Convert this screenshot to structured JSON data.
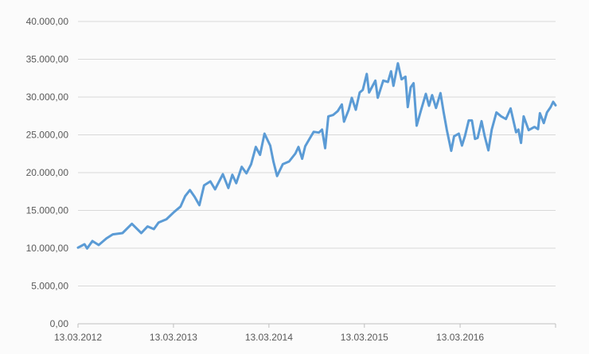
{
  "chart_data": {
    "type": "line",
    "title": "",
    "xlabel": "",
    "ylabel": "",
    "ylim": [
      0,
      40000
    ],
    "xlim": [
      "2012-03-13",
      "2017-03-13"
    ],
    "grid": "horizontal",
    "legend": "none",
    "line_color": "#5b9bd5",
    "y_ticks": [
      {
        "value": 0,
        "label": "0,00"
      },
      {
        "value": 5000,
        "label": "5.000,00"
      },
      {
        "value": 10000,
        "label": "10.000,00"
      },
      {
        "value": 15000,
        "label": "15.000,00"
      },
      {
        "value": 20000,
        "label": "20.000,00"
      },
      {
        "value": 25000,
        "label": "25.000,00"
      },
      {
        "value": 30000,
        "label": "30.000,00"
      },
      {
        "value": 35000,
        "label": "35.000,00"
      },
      {
        "value": 40000,
        "label": "40.000,00"
      }
    ],
    "x_ticks": [
      {
        "value": "2012-03-13",
        "label": "13.03.2012"
      },
      {
        "value": "2013-03-13",
        "label": "13.03.2013"
      },
      {
        "value": "2014-03-13",
        "label": "13.03.2014"
      },
      {
        "value": "2015-03-13",
        "label": "13.03.2015"
      },
      {
        "value": "2016-03-13",
        "label": "13.03.2016"
      },
      {
        "value": "2017-03-13",
        "label": ""
      }
    ],
    "points": [
      [
        "2012-03-13",
        10070
      ],
      [
        "2012-04-07",
        10530
      ],
      [
        "2012-04-17",
        9970
      ],
      [
        "2012-05-07",
        10950
      ],
      [
        "2012-05-31",
        10420
      ],
      [
        "2012-06-30",
        11300
      ],
      [
        "2012-07-24",
        11830
      ],
      [
        "2012-08-30",
        12000
      ],
      [
        "2012-10-05",
        13230
      ],
      [
        "2012-11-10",
        12000
      ],
      [
        "2012-12-04",
        12880
      ],
      [
        "2012-12-28",
        12530
      ],
      [
        "2013-01-15",
        13400
      ],
      [
        "2013-02-14",
        13830
      ],
      [
        "2013-03-16",
        14810
      ],
      [
        "2013-04-09",
        15510
      ],
      [
        "2013-04-27",
        16910
      ],
      [
        "2013-05-15",
        17690
      ],
      [
        "2013-06-02",
        16800
      ],
      [
        "2013-06-20",
        15690
      ],
      [
        "2013-07-08",
        18320
      ],
      [
        "2013-08-01",
        18840
      ],
      [
        "2013-08-19",
        17790
      ],
      [
        "2013-09-18",
        19790
      ],
      [
        "2013-10-09",
        17970
      ],
      [
        "2013-10-24",
        19720
      ],
      [
        "2013-11-08",
        18600
      ],
      [
        "2013-11-29",
        20770
      ],
      [
        "2013-12-17",
        19900
      ],
      [
        "2014-01-04",
        21120
      ],
      [
        "2014-01-22",
        23400
      ],
      [
        "2014-02-07",
        22350
      ],
      [
        "2014-02-24",
        25160
      ],
      [
        "2014-03-18",
        23580
      ],
      [
        "2014-03-30",
        21470
      ],
      [
        "2014-04-13",
        19550
      ],
      [
        "2014-05-05",
        21120
      ],
      [
        "2014-05-29",
        21470
      ],
      [
        "2014-06-22",
        22530
      ],
      [
        "2014-07-04",
        23400
      ],
      [
        "2014-07-18",
        21830
      ],
      [
        "2014-07-30",
        23510
      ],
      [
        "2014-08-15",
        24460
      ],
      [
        "2014-08-31",
        25400
      ],
      [
        "2014-09-20",
        25300
      ],
      [
        "2014-10-02",
        25690
      ],
      [
        "2014-10-14",
        23230
      ],
      [
        "2014-10-26",
        27440
      ],
      [
        "2014-11-13",
        27620
      ],
      [
        "2014-12-01",
        28140
      ],
      [
        "2014-12-17",
        29020
      ],
      [
        "2014-12-25",
        26740
      ],
      [
        "2015-01-12",
        28320
      ],
      [
        "2015-01-24",
        29900
      ],
      [
        "2015-02-08",
        28320
      ],
      [
        "2015-02-23",
        30600
      ],
      [
        "2015-03-07",
        30950
      ],
      [
        "2015-03-22",
        33060
      ],
      [
        "2015-03-31",
        30600
      ],
      [
        "2015-04-24",
        32180
      ],
      [
        "2015-05-03",
        29900
      ],
      [
        "2015-05-24",
        32180
      ],
      [
        "2015-06-11",
        32000
      ],
      [
        "2015-06-23",
        33410
      ],
      [
        "2015-07-02",
        31480
      ],
      [
        "2015-07-19",
        34460
      ],
      [
        "2015-08-02",
        32350
      ],
      [
        "2015-08-17",
        32700
      ],
      [
        "2015-08-26",
        28670
      ],
      [
        "2015-09-06",
        31300
      ],
      [
        "2015-09-17",
        31830
      ],
      [
        "2015-09-29",
        26210
      ],
      [
        "2015-10-16",
        28320
      ],
      [
        "2015-11-03",
        30420
      ],
      [
        "2015-11-15",
        28840
      ],
      [
        "2015-11-27",
        30250
      ],
      [
        "2015-12-12",
        28560
      ],
      [
        "2015-12-29",
        30530
      ],
      [
        "2016-01-10",
        27970
      ],
      [
        "2016-01-22",
        25690
      ],
      [
        "2016-02-08",
        22880
      ],
      [
        "2016-02-19",
        24810
      ],
      [
        "2016-03-08",
        25160
      ],
      [
        "2016-03-20",
        23580
      ],
      [
        "2016-04-01",
        24900
      ],
      [
        "2016-04-15",
        26910
      ],
      [
        "2016-04-27",
        26910
      ],
      [
        "2016-05-09",
        24460
      ],
      [
        "2016-05-19",
        24600
      ],
      [
        "2016-06-03",
        26810
      ],
      [
        "2016-06-15",
        24800
      ],
      [
        "2016-06-29",
        22950
      ],
      [
        "2016-07-12",
        25690
      ],
      [
        "2016-07-30",
        27970
      ],
      [
        "2016-08-17",
        27440
      ],
      [
        "2016-09-04",
        27090
      ],
      [
        "2016-09-22",
        28490
      ],
      [
        "2016-10-13",
        25340
      ],
      [
        "2016-10-22",
        25700
      ],
      [
        "2016-11-01",
        23930
      ],
      [
        "2016-11-11",
        27440
      ],
      [
        "2016-11-30",
        25620
      ],
      [
        "2016-12-22",
        26040
      ],
      [
        "2017-01-05",
        25760
      ],
      [
        "2017-01-12",
        27860
      ],
      [
        "2017-01-27",
        26560
      ],
      [
        "2017-02-08",
        27970
      ],
      [
        "2017-02-22",
        28670
      ],
      [
        "2017-03-04",
        29370
      ],
      [
        "2017-03-13",
        28910
      ]
    ]
  }
}
